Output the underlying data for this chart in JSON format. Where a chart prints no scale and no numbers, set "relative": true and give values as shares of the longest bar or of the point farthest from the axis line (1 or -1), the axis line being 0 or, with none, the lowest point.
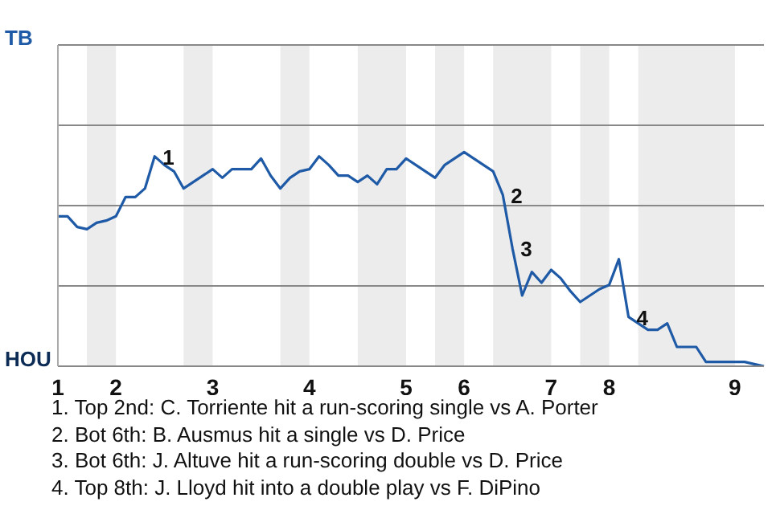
{
  "chart_data": {
    "type": "line",
    "relative": true,
    "categories": [
      "1",
      null,
      null,
      null,
      null,
      null,
      "2",
      null,
      null,
      null,
      null,
      null,
      null,
      null,
      null,
      null,
      "3",
      null,
      null,
      null,
      null,
      null,
      null,
      null,
      null,
      null,
      "4",
      null,
      null,
      null,
      null,
      null,
      null,
      null,
      null,
      null,
      "5",
      null,
      null,
      null,
      null,
      null,
      "6",
      null,
      null,
      null,
      null,
      null,
      null,
      null,
      null,
      "7",
      null,
      null,
      null,
      null,
      null,
      "8",
      null,
      null,
      null,
      null,
      null,
      null,
      null,
      null,
      null,
      null,
      null,
      null,
      "9",
      null,
      null,
      null
    ],
    "values": [
      0.7,
      0.7,
      0.65,
      0.64,
      0.67,
      0.68,
      0.7,
      0.79,
      0.79,
      0.83,
      0.98,
      0.94,
      0.91,
      0.83,
      0.86,
      0.89,
      0.92,
      0.88,
      0.92,
      0.92,
      0.92,
      0.97,
      0.89,
      0.83,
      0.88,
      0.91,
      0.92,
      0.98,
      0.94,
      0.89,
      0.89,
      0.86,
      0.89,
      0.85,
      0.92,
      0.92,
      0.97,
      0.94,
      0.91,
      0.88,
      0.94,
      0.97,
      1,
      0.97,
      0.94,
      0.91,
      0.8,
      0.55,
      0.33,
      0.44,
      0.39,
      0.45,
      0.41,
      0.35,
      0.3,
      0.33,
      0.36,
      0.38,
      0.5,
      0.23,
      0.2,
      0.17,
      0.17,
      0.2,
      0.09,
      0.09,
      0.09,
      0.02,
      0.02,
      0.02,
      0.02,
      0.02,
      0.01,
      0
    ],
    "color": "#1f5aa6",
    "marker": "none",
    "ref_lines": [
      {
        "axis": "y",
        "value": 0.375,
        "color": "#888888"
      },
      {
        "axis": "y",
        "value": 0.75,
        "color": "#888888"
      },
      {
        "axis": "y",
        "value": 1.125,
        "color": "#888888"
      },
      {
        "axis": "y",
        "value": 1.5,
        "color": "#888888"
      }
    ],
    "annotations": [
      "TB",
      "HOU",
      "1",
      "2",
      "3",
      "4",
      "1. Top 2nd: C. Torriente hit a run-scoring single vs A. Porter",
      "2. Bot 6th: B. Ausmus hit a single vs D. Price",
      "3. Bot 6th: J. Altuve hit a run-scoring double vs D. Price",
      "4. Top 8th: J. Lloyd hit into a double play vs F. DiPino"
    ]
  }
}
